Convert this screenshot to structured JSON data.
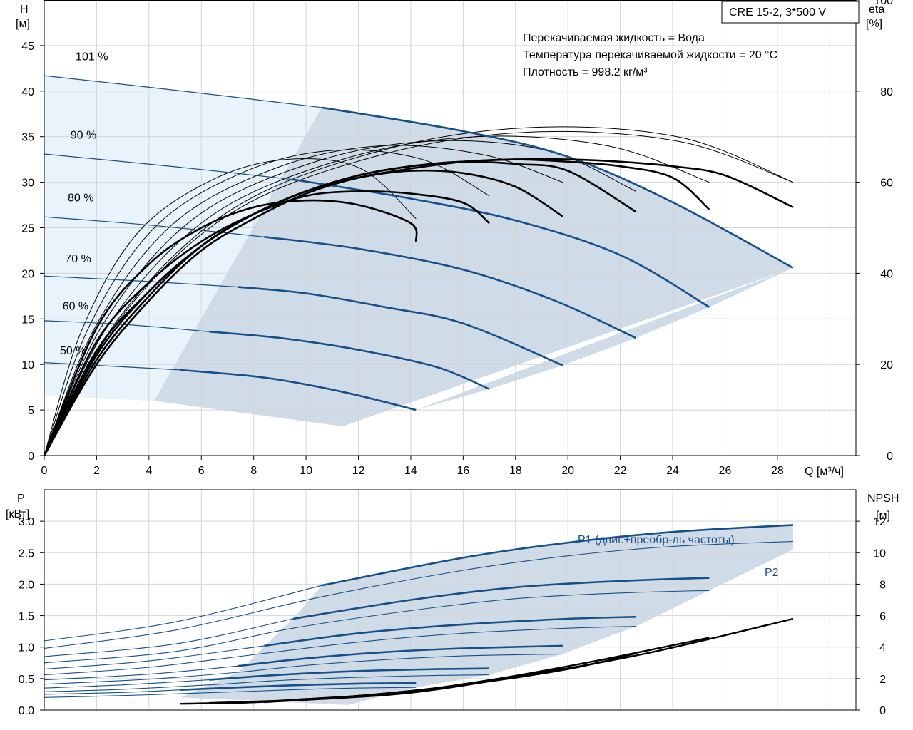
{
  "colors": {
    "curve_blue": "#16508a",
    "light_region": "#e9f3fc",
    "operating_region": "#cfdbe7",
    "grid": "#d4d4d4",
    "black": "#000000"
  },
  "legend_box": "CRE 15-2, 3*500 V",
  "info_lines": [
    "Перекачиваемая жидкость = Вода",
    "Температура перекачиваемой жидкости = 20 °C",
    "Плотность = 998.2 кг/м³"
  ],
  "chart_data": [
    {
      "type": "line",
      "name": "head_efficiency",
      "xlabel": "Q [м³/ч]",
      "ylabel_left": [
        "H",
        "[м]"
      ],
      "ylabel_right": [
        "eta",
        "[%]"
      ],
      "xlim": [
        0,
        31
      ],
      "ylim_left": [
        0,
        50
      ],
      "ylim_right": [
        0,
        100
      ],
      "x_ticks": [
        0,
        2,
        4,
        6,
        8,
        10,
        12,
        14,
        16,
        18,
        20,
        22,
        24,
        26,
        28
      ],
      "y_ticks_left": [
        0,
        5,
        10,
        15,
        20,
        25,
        30,
        35,
        40,
        45
      ],
      "y_ticks_right": [
        0,
        20,
        40,
        60,
        80,
        100
      ],
      "grid": true,
      "head_curves": [
        {
          "label": "101 %",
          "points": [
            [
              0,
              41.7
            ],
            [
              5,
              40.1
            ],
            [
              10.6,
              38.2
            ],
            [
              16,
              35.6
            ],
            [
              20,
              32.8
            ],
            [
              24,
              27.8
            ],
            [
              28.6,
              20.6
            ]
          ]
        },
        {
          "label": "90 %",
          "points": [
            [
              0,
              33.1
            ],
            [
              5,
              31.7
            ],
            [
              9.5,
              30.3
            ],
            [
              14,
              28.2
            ],
            [
              18,
              25.8
            ],
            [
              22,
              22.0
            ],
            [
              25.4,
              16.3
            ]
          ]
        },
        {
          "label": "80 %",
          "points": [
            [
              0,
              26.2
            ],
            [
              4,
              25.3
            ],
            [
              8.4,
              24.0
            ],
            [
              12,
              22.7
            ],
            [
              16,
              20.4
            ],
            [
              19.5,
              17.0
            ],
            [
              22.6,
              12.9
            ]
          ]
        },
        {
          "label": "70 %",
          "points": [
            [
              0,
              19.7
            ],
            [
              4,
              19.1
            ],
            [
              7.4,
              18.5
            ],
            [
              10,
              17.8
            ],
            [
              13,
              16.3
            ],
            [
              16,
              14.5
            ],
            [
              19.8,
              9.9
            ]
          ]
        },
        {
          "label": "60 %",
          "points": [
            [
              0,
              14.8
            ],
            [
              3,
              14.4
            ],
            [
              6.3,
              13.6
            ],
            [
              9,
              12.9
            ],
            [
              12,
              11.6
            ],
            [
              15,
              9.7
            ],
            [
              17,
              7.3
            ]
          ]
        },
        {
          "label": "50 %",
          "points": [
            [
              0,
              10.2
            ],
            [
              2,
              9.9
            ],
            [
              5.2,
              9.4
            ],
            [
              8,
              8.7
            ],
            [
              10,
              7.8
            ],
            [
              12,
              6.6
            ],
            [
              14.2,
              5.0
            ]
          ]
        }
      ],
      "efficiency_curves_thick": [
        {
          "points": [
            [
              0,
              0
            ],
            [
              2,
              28
            ],
            [
              4,
              42
            ],
            [
              6,
              50
            ],
            [
              8,
              54.5
            ],
            [
              10,
              56
            ],
            [
              12,
              55
            ],
            [
              14,
              51
            ],
            [
              14.2,
              47
            ]
          ]
        },
        {
          "points": [
            [
              0,
              0
            ],
            [
              2,
              25
            ],
            [
              4,
              38
            ],
            [
              6,
              47
            ],
            [
              8,
              53
            ],
            [
              10,
              57
            ],
            [
              12,
              58
            ],
            [
              14,
              57.5
            ],
            [
              16,
              55.5
            ],
            [
              17,
              51
            ]
          ]
        },
        {
          "points": [
            [
              0,
              0
            ],
            [
              2,
              23
            ],
            [
              4,
              36
            ],
            [
              6,
              46
            ],
            [
              8,
              53
            ],
            [
              10,
              58
            ],
            [
              12,
              61
            ],
            [
              14,
              62.5
            ],
            [
              16,
              62
            ],
            [
              18,
              59
            ],
            [
              19.8,
              52.5
            ]
          ]
        },
        {
          "points": [
            [
              0,
              0
            ],
            [
              2,
              22
            ],
            [
              4,
              36
            ],
            [
              6,
              46
            ],
            [
              8,
              53
            ],
            [
              10,
              58
            ],
            [
              12,
              61.5
            ],
            [
              14,
              63.5
            ],
            [
              16,
              64.5
            ],
            [
              18,
              64
            ],
            [
              20,
              62.5
            ],
            [
              22.6,
              53.5
            ]
          ]
        },
        {
          "points": [
            [
              0,
              0
            ],
            [
              2,
              21
            ],
            [
              4,
              35
            ],
            [
              6,
              46
            ],
            [
              8,
              53
            ],
            [
              10,
              58
            ],
            [
              12,
              61.5
            ],
            [
              14,
              63.5
            ],
            [
              16,
              64.5
            ],
            [
              18,
              65
            ],
            [
              20,
              64.5
            ],
            [
              22,
              63.5
            ],
            [
              24,
              61
            ],
            [
              25.4,
              54
            ]
          ]
        },
        {
          "points": [
            [
              0,
              0
            ],
            [
              2,
              20
            ],
            [
              4,
              34
            ],
            [
              6,
              45
            ],
            [
              8,
              52
            ],
            [
              10,
              57.5
            ],
            [
              12,
              61
            ],
            [
              14,
              63
            ],
            [
              16,
              64.5
            ],
            [
              18,
              65
            ],
            [
              20,
              65
            ],
            [
              22,
              64.5
            ],
            [
              24,
              63.5
            ],
            [
              26,
              61.5
            ],
            [
              28.6,
              54.5
            ]
          ]
        }
      ],
      "efficiency_curves_thin_peak": [
        65,
        67,
        68,
        69,
        70,
        71,
        72
      ],
      "efficiency_curves_thin_end": [
        [
          14.2,
          52
        ],
        [
          17,
          57
        ],
        [
          19.8,
          60
        ],
        [
          22.6,
          58
        ],
        [
          25.4,
          60
        ],
        [
          28.6,
          60
        ]
      ]
    },
    {
      "type": "line",
      "name": "power_npsh",
      "ylabel_left": [
        "P",
        "[кВт]"
      ],
      "ylabel_right": [
        "NPSH",
        "[м]"
      ],
      "xlim": [
        0,
        31
      ],
      "ylim_left": [
        0,
        3.5
      ],
      "ylim_right": [
        0,
        14
      ],
      "y_ticks_left": [
        "0.0",
        "0.5",
        "1.0",
        "1.5",
        "2.0",
        "2.5",
        "3.0"
      ],
      "y_ticks_right": [
        0,
        2,
        4,
        6,
        8,
        10,
        12
      ],
      "grid": true,
      "series_labels": [
        "P1 (двиг.+преобр-ль частоты)",
        "P2"
      ],
      "p1_curves": [
        {
          "points": [
            [
              0,
              1.1
            ],
            [
              5,
              1.4
            ],
            [
              10.6,
              1.98
            ],
            [
              16,
              2.42
            ],
            [
              20,
              2.66
            ],
            [
              24,
              2.83
            ],
            [
              28.6,
              2.94
            ]
          ]
        },
        {
          "points": [
            [
              0,
              0.85
            ],
            [
              5,
              1.05
            ],
            [
              9.5,
              1.45
            ],
            [
              14,
              1.75
            ],
            [
              18,
              1.95
            ],
            [
              22,
              2.05
            ],
            [
              25.4,
              2.1
            ]
          ]
        },
        {
          "points": [
            [
              0,
              0.65
            ],
            [
              4,
              0.78
            ],
            [
              8.4,
              1.02
            ],
            [
              12,
              1.22
            ],
            [
              16,
              1.36
            ],
            [
              20,
              1.45
            ],
            [
              22.6,
              1.48
            ]
          ]
        },
        {
          "points": [
            [
              0,
              0.48
            ],
            [
              4,
              0.57
            ],
            [
              7.4,
              0.7
            ],
            [
              10,
              0.82
            ],
            [
              13,
              0.92
            ],
            [
              16,
              0.98
            ],
            [
              19.8,
              1.02
            ]
          ]
        },
        {
          "points": [
            [
              0,
              0.35
            ],
            [
              3,
              0.4
            ],
            [
              6.3,
              0.48
            ],
            [
              9,
              0.56
            ],
            [
              12,
              0.62
            ],
            [
              15,
              0.65
            ],
            [
              17,
              0.66
            ]
          ]
        },
        {
          "points": [
            [
              0,
              0.25
            ],
            [
              3,
              0.28
            ],
            [
              5.2,
              0.32
            ],
            [
              8,
              0.37
            ],
            [
              10,
              0.4
            ],
            [
              12,
              0.42
            ],
            [
              14.2,
              0.43
            ]
          ]
        }
      ],
      "p2_curves": [
        {
          "points": [
            [
              0,
              0.98
            ],
            [
              5,
              1.27
            ],
            [
              10.6,
              1.8
            ],
            [
              16,
              2.22
            ],
            [
              20,
              2.45
            ],
            [
              24,
              2.6
            ],
            [
              28.6,
              2.68
            ]
          ]
        },
        {
          "points": [
            [
              0,
              0.75
            ],
            [
              5,
              0.93
            ],
            [
              9.5,
              1.3
            ],
            [
              14,
              1.58
            ],
            [
              18,
              1.77
            ],
            [
              22,
              1.86
            ],
            [
              25.4,
              1.9
            ]
          ]
        },
        {
          "points": [
            [
              0,
              0.56
            ],
            [
              4,
              0.68
            ],
            [
              8.4,
              0.9
            ],
            [
              12,
              1.08
            ],
            [
              16,
              1.22
            ],
            [
              20,
              1.3
            ],
            [
              22.6,
              1.33
            ]
          ]
        },
        {
          "points": [
            [
              0,
              0.41
            ],
            [
              4,
              0.49
            ],
            [
              7.4,
              0.6
            ],
            [
              10,
              0.71
            ],
            [
              13,
              0.8
            ],
            [
              16,
              0.86
            ],
            [
              19.8,
              0.89
            ]
          ]
        },
        {
          "points": [
            [
              0,
              0.29
            ],
            [
              3,
              0.33
            ],
            [
              6.3,
              0.4
            ],
            [
              9,
              0.47
            ],
            [
              12,
              0.52
            ],
            [
              15,
              0.55
            ],
            [
              17,
              0.56
            ]
          ]
        },
        {
          "points": [
            [
              0,
              0.2
            ],
            [
              3,
              0.23
            ],
            [
              5.2,
              0.26
            ],
            [
              8,
              0.3
            ],
            [
              10,
              0.33
            ],
            [
              12,
              0.35
            ],
            [
              14.2,
              0.36
            ]
          ]
        }
      ],
      "npsh_curves": [
        {
          "points": [
            [
              5.2,
              0.4
            ],
            [
              8,
              0.5
            ],
            [
              10,
              0.7
            ],
            [
              12,
              0.9
            ],
            [
              14.2,
              1.2
            ]
          ]
        },
        {
          "points": [
            [
              6.3,
              0.45
            ],
            [
              9,
              0.6
            ],
            [
              12,
              0.9
            ],
            [
              15,
              1.4
            ],
            [
              17,
              1.9
            ]
          ]
        },
        {
          "points": [
            [
              7.4,
              0.45
            ],
            [
              10,
              0.65
            ],
            [
              13,
              1.0
            ],
            [
              16,
              1.6
            ],
            [
              19.8,
              2.7
            ]
          ]
        },
        {
          "points": [
            [
              8.4,
              0.5
            ],
            [
              12,
              0.9
            ],
            [
              16,
              1.6
            ],
            [
              20,
              2.6
            ],
            [
              22.6,
              3.6
            ]
          ]
        },
        {
          "points": [
            [
              9.5,
              0.6
            ],
            [
              13,
              1.0
            ],
            [
              17,
              1.9
            ],
            [
              21,
              3.1
            ],
            [
              25.4,
              4.6
            ]
          ]
        },
        {
          "points": [
            [
              10.6,
              0.7
            ],
            [
              14,
              1.1
            ],
            [
              18,
              2.1
            ],
            [
              23,
              3.6
            ],
            [
              28.6,
              5.8
            ]
          ]
        }
      ]
    }
  ]
}
